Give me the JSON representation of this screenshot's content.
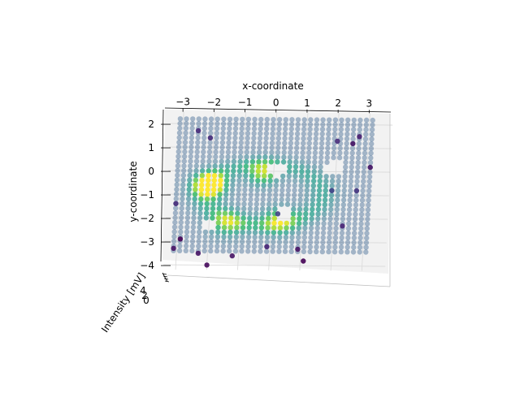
{
  "chart_data": {
    "type": "scatter",
    "projection": "3d",
    "xlabel": "x-coordinate",
    "ylabel": "y-coordinate",
    "zlabel": "Intensity [mV]",
    "xlim": [
      -3.4,
      3.4
    ],
    "ylim": [
      -4.2,
      2.5
    ],
    "x_ticks": [
      "−3",
      "−2",
      "−1",
      "0",
      "1",
      "2",
      "3"
    ],
    "y_ticks": [
      "2",
      "1",
      "0",
      "−1",
      "−2",
      "−3",
      "−4"
    ],
    "z_tick_labels_visible": [
      "0",
      "2",
      "4"
    ],
    "colormap": "viridis",
    "grid": true,
    "grid_spec": {
      "x_start": -3.1,
      "x_step": 0.2,
      "x_count": 32,
      "y_start": 2.2,
      "y_step": -0.2,
      "y_count": 29
    },
    "peaks": [
      {
        "x": -2.05,
        "y": -0.6,
        "amplitude": 1.0,
        "sigma": 0.35
      },
      {
        "x": -0.35,
        "y": -0.1,
        "amplitude": 0.55,
        "sigma": 0.35
      },
      {
        "x": 0.25,
        "y": -2.1,
        "amplitude": 0.5,
        "sigma": 0.4
      },
      {
        "x": -1.4,
        "y": -2.2,
        "amplitude": 0.45,
        "sigma": 0.4
      }
    ],
    "ring": {
      "x": -0.3,
      "y": -1.0,
      "rx": 1.9,
      "ry": 1.3,
      "width": 0.35,
      "amplitude": 0.25
    },
    "hole_regions": [
      {
        "x": 0.1,
        "y": 0.05,
        "r": 0.28
      },
      {
        "x": 1.95,
        "y": 0.15,
        "r": 0.3
      },
      {
        "x": 0.4,
        "y": -1.85,
        "r": 0.3
      },
      {
        "x": -2.0,
        "y": -2.25,
        "r": 0.22
      }
    ],
    "outliers": [
      {
        "x": -2.9,
        "y": -2.9,
        "v": 0.0
      },
      {
        "x": -2.3,
        "y": -3.5,
        "v": 0.05
      },
      {
        "x": -2.0,
        "y": -4.0,
        "v": 0.02
      },
      {
        "x": -1.2,
        "y": -3.6,
        "v": 0.05
      },
      {
        "x": -0.1,
        "y": -3.2,
        "v": 0.1
      },
      {
        "x": 0.9,
        "y": -3.3,
        "v": 0.05
      },
      {
        "x": 1.1,
        "y": -3.8,
        "v": 0.0
      },
      {
        "x": -2.1,
        "y": 1.4,
        "v": 0.12
      },
      {
        "x": -2.5,
        "y": 1.7,
        "v": 0.12
      },
      {
        "x": 2.0,
        "y": 1.3,
        "v": 0.12
      },
      {
        "x": 2.5,
        "y": 1.2,
        "v": 0.05
      },
      {
        "x": 2.7,
        "y": 1.5,
        "v": 0.08
      },
      {
        "x": 3.1,
        "y": 0.2,
        "v": 0.05
      },
      {
        "x": 2.7,
        "y": -0.8,
        "v": 0.15
      },
      {
        "x": 2.3,
        "y": -2.3,
        "v": 0.1
      },
      {
        "x": -3.1,
        "y": -1.4,
        "v": 0.12
      },
      {
        "x": -3.1,
        "y": -3.3,
        "v": 0.05
      },
      {
        "x": 1.9,
        "y": -0.8,
        "v": 0.2
      },
      {
        "x": 0.2,
        "y": -1.8,
        "v": 0.2
      }
    ]
  }
}
